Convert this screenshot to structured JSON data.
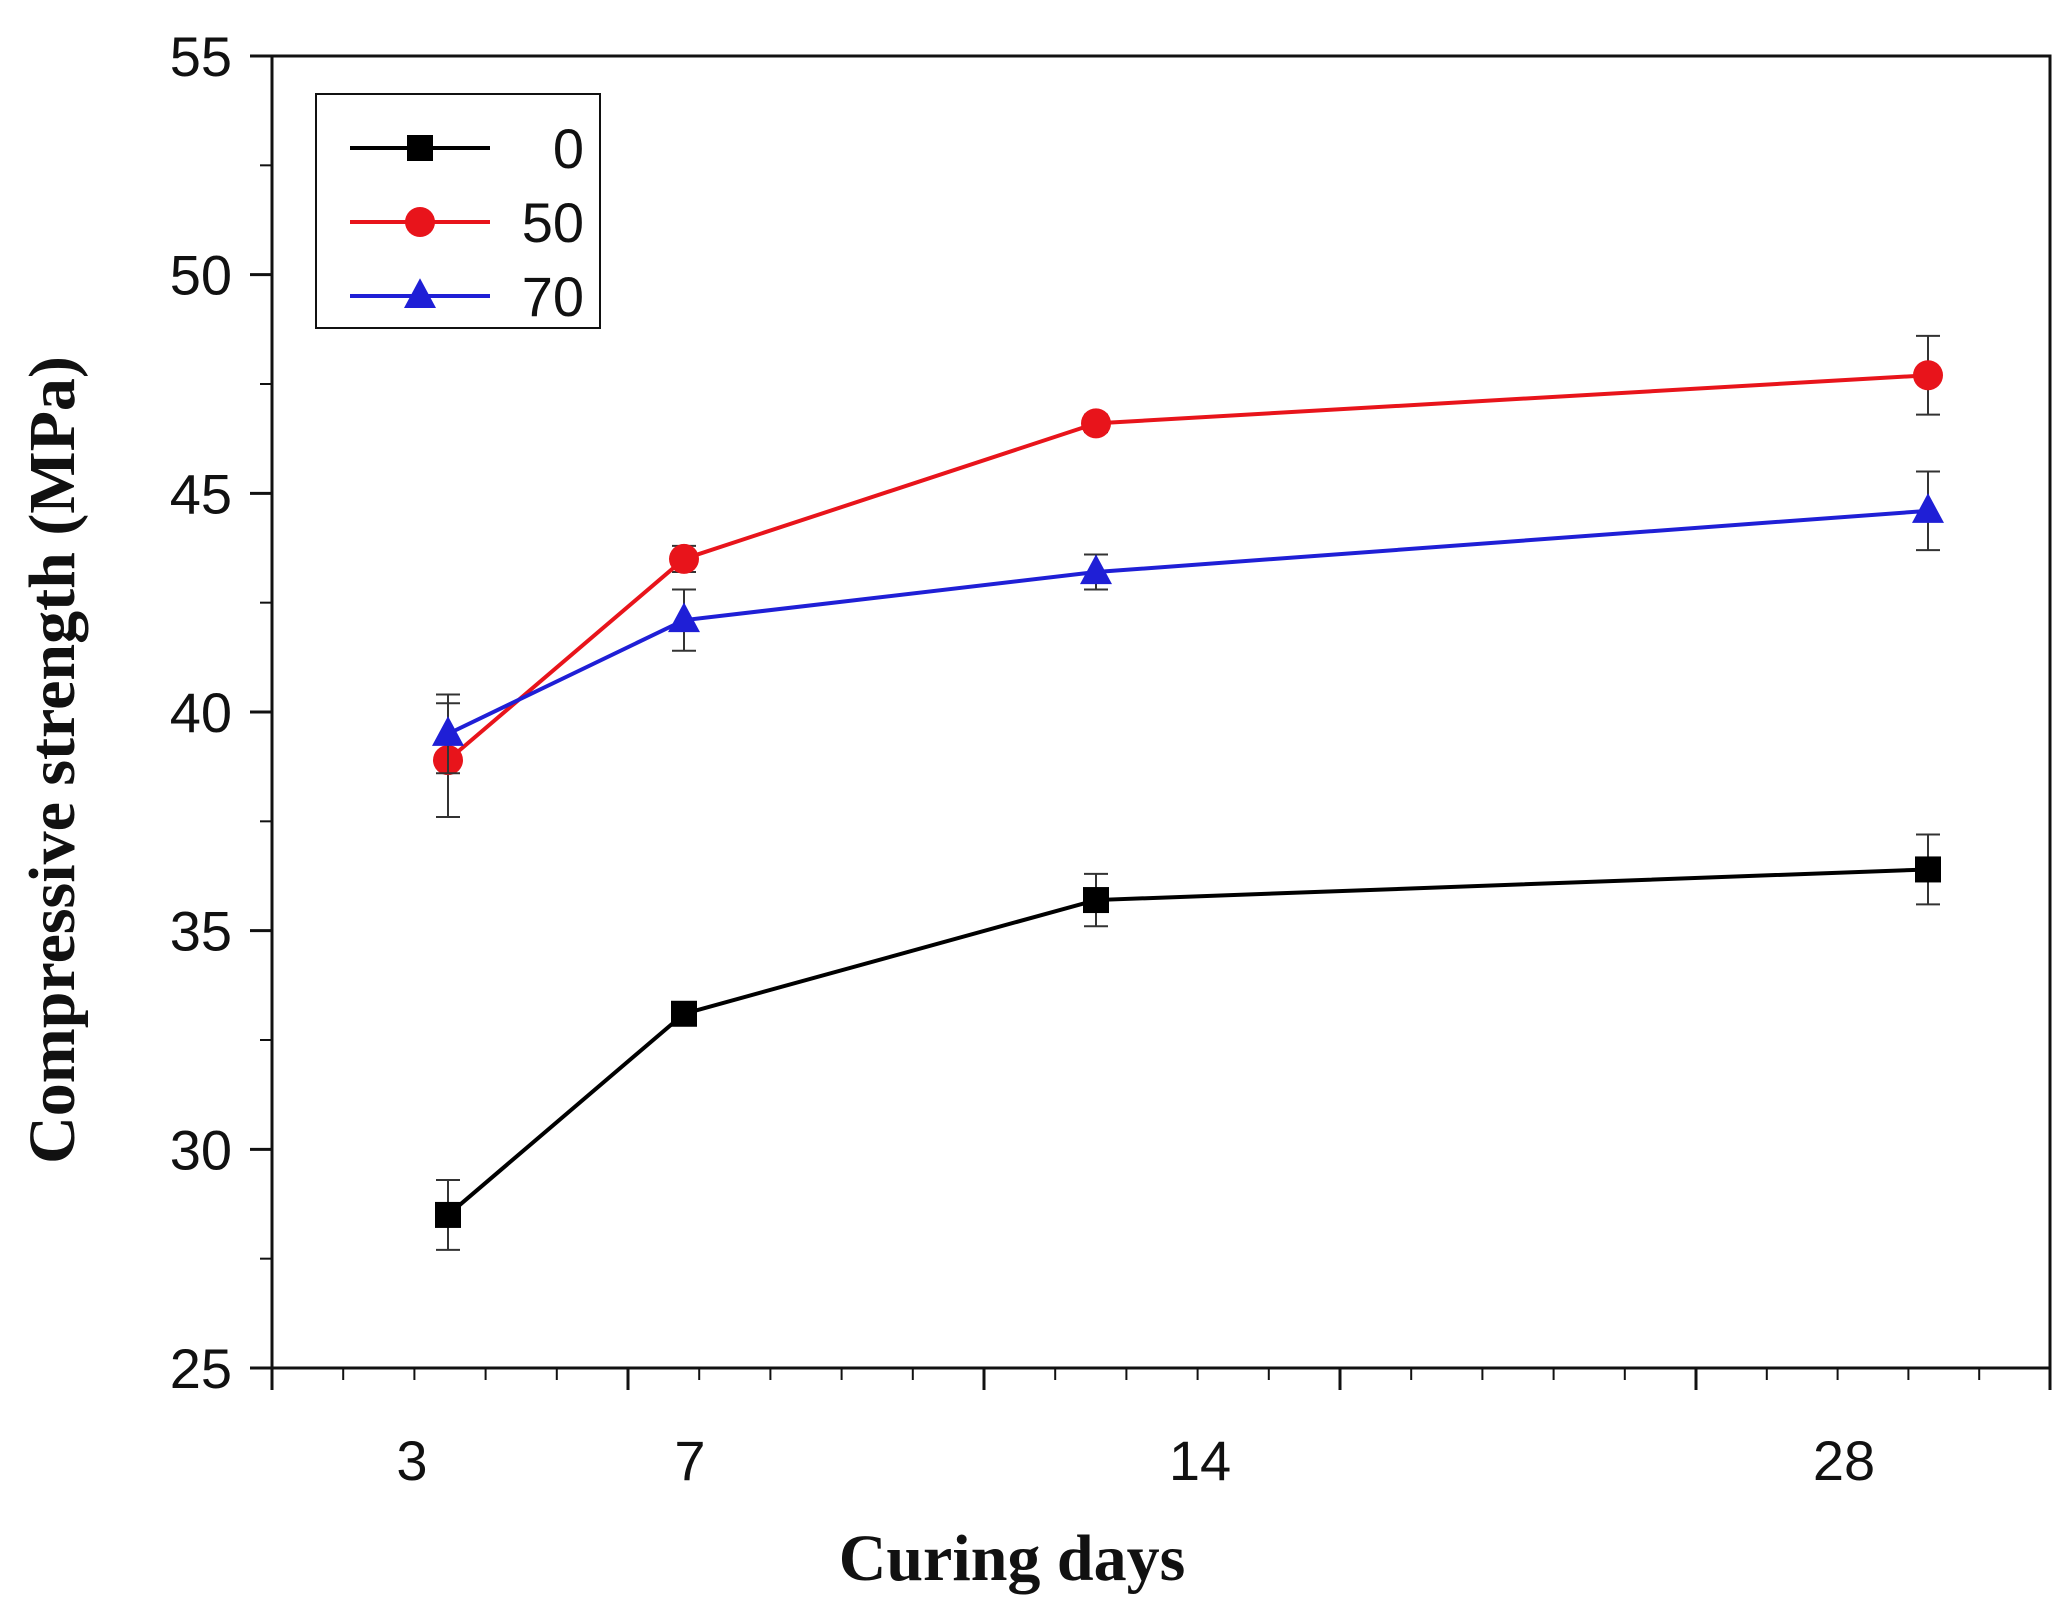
{
  "chart_data": {
    "type": "line",
    "title": "",
    "xlabel": "Curing days",
    "ylabel": "Compressive strength (MPa)",
    "x": [
      3,
      7,
      14,
      28
    ],
    "x_tick_labels": [
      "3",
      "7",
      "14",
      "28"
    ],
    "ylim": [
      25,
      55
    ],
    "y_ticks": [
      25,
      30,
      35,
      40,
      45,
      50,
      55
    ],
    "y_tick_labels": [
      "25",
      "30",
      "35",
      "40",
      "45",
      "50",
      "55"
    ],
    "grid": false,
    "legend_position": "top-left",
    "series": [
      {
        "name": "0",
        "color": "#000000",
        "marker": "square",
        "values": [
          28.5,
          33.1,
          35.7,
          36.4
        ],
        "errors": [
          0.8,
          0.2,
          0.6,
          0.8
        ]
      },
      {
        "name": "50",
        "color": "#e8141b",
        "marker": "circle",
        "values": [
          38.9,
          43.5,
          46.6,
          47.7
        ],
        "errors": [
          1.3,
          0.3,
          0.2,
          0.9
        ]
      },
      {
        "name": "70",
        "color": "#1f1fd6",
        "marker": "triangle",
        "values": [
          39.5,
          42.1,
          43.2,
          44.6
        ],
        "errors": [
          0.9,
          0.7,
          0.4,
          0.9
        ]
      }
    ]
  }
}
